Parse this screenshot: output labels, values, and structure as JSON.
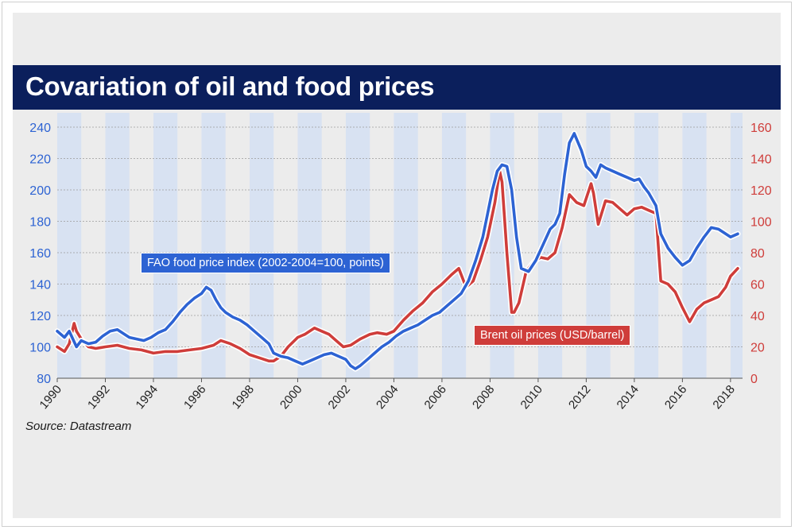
{
  "title": "Covariation of oil and food prices",
  "source": "Source: Datastream",
  "colors": {
    "fao": "#2d63d3",
    "brent": "#cf3d3a",
    "title_bg": "#0b1f5c",
    "band": "#d8e2f2"
  },
  "chart_data": {
    "type": "line",
    "title": "Covariation of oil and food prices",
    "x_ticks": [
      "1990",
      "1992",
      "1994",
      "1996",
      "1998",
      "2000",
      "2002",
      "2004",
      "2006",
      "2008",
      "2010",
      "2012",
      "2014",
      "2016",
      "2018"
    ],
    "xlim": [
      1990,
      2018.5
    ],
    "y_left": {
      "ticks": [
        80,
        100,
        120,
        140,
        160,
        180,
        200,
        220,
        240
      ],
      "lim": [
        80,
        240
      ]
    },
    "y_right": {
      "ticks": [
        0,
        20,
        40,
        60,
        80,
        100,
        120,
        140,
        160
      ],
      "lim": [
        0,
        160
      ]
    },
    "grid": true,
    "series": [
      {
        "name": "FAO food price index (2002-2004=100, points)",
        "axis": "left",
        "x": [
          1990.0,
          1990.3,
          1990.5,
          1990.8,
          1991.0,
          1991.3,
          1991.6,
          1991.9,
          1992.2,
          1992.5,
          1992.8,
          1993.0,
          1993.3,
          1993.6,
          1993.9,
          1994.2,
          1994.5,
          1994.8,
          1995.1,
          1995.4,
          1995.7,
          1996.0,
          1996.2,
          1996.4,
          1996.6,
          1996.8,
          1997.0,
          1997.3,
          1997.6,
          1997.9,
          1998.2,
          1998.5,
          1998.8,
          1999.0,
          1999.3,
          1999.6,
          1999.9,
          2000.2,
          2000.5,
          2000.8,
          2001.1,
          2001.4,
          2001.7,
          2002.0,
          2002.2,
          2002.4,
          2002.6,
          2002.9,
          2003.2,
          2003.5,
          2003.8,
          2004.1,
          2004.4,
          2004.7,
          2005.0,
          2005.3,
          2005.6,
          2005.9,
          2006.2,
          2006.5,
          2006.8,
          2007.1,
          2007.4,
          2007.7,
          2007.9,
          2008.1,
          2008.3,
          2008.5,
          2008.7,
          2008.9,
          2009.1,
          2009.3,
          2009.6,
          2009.9,
          2010.2,
          2010.5,
          2010.7,
          2010.9,
          2011.1,
          2011.3,
          2011.5,
          2011.8,
          2012.0,
          2012.2,
          2012.4,
          2012.6,
          2012.8,
          2013.1,
          2013.4,
          2013.7,
          2014.0,
          2014.2,
          2014.4,
          2014.6,
          2014.9,
          2015.1,
          2015.4,
          2015.7,
          2016.0,
          2016.3,
          2016.6,
          2016.9,
          2017.2,
          2017.5,
          2017.8,
          2018.0,
          2018.3
        ],
        "y": [
          110,
          106,
          110,
          100,
          104,
          102,
          103,
          107,
          110,
          111,
          108,
          106,
          105,
          104,
          106,
          109,
          111,
          116,
          122,
          127,
          131,
          134,
          138,
          136,
          130,
          125,
          122,
          119,
          117,
          114,
          110,
          106,
          102,
          96,
          94,
          93,
          91,
          89,
          91,
          93,
          95,
          96,
          94,
          92,
          88,
          86,
          88,
          92,
          96,
          100,
          103,
          107,
          110,
          112,
          114,
          117,
          120,
          122,
          126,
          130,
          134,
          142,
          155,
          170,
          185,
          200,
          212,
          216,
          215,
          200,
          170,
          150,
          148,
          155,
          165,
          175,
          178,
          185,
          210,
          230,
          236,
          225,
          215,
          212,
          208,
          216,
          214,
          212,
          210,
          208,
          206,
          207,
          202,
          198,
          190,
          172,
          163,
          157,
          152,
          155,
          163,
          170,
          176,
          175,
          172,
          170,
          172
        ]
      },
      {
        "name": "Brent oil prices (USD/barrel)",
        "axis": "right",
        "x": [
          1990.0,
          1990.3,
          1990.5,
          1990.7,
          1990.8,
          1991.0,
          1991.3,
          1991.6,
          1992.0,
          1992.5,
          1993.0,
          1993.5,
          1994.0,
          1994.5,
          1995.0,
          1995.5,
          1996.0,
          1996.5,
          1996.8,
          1997.2,
          1997.6,
          1998.0,
          1998.4,
          1998.8,
          1999.0,
          1999.3,
          1999.6,
          2000.0,
          2000.3,
          2000.7,
          2001.0,
          2001.3,
          2001.6,
          2001.9,
          2002.2,
          2002.6,
          2003.0,
          2003.3,
          2003.7,
          2004.0,
          2004.4,
          2004.8,
          2005.2,
          2005.6,
          2006.0,
          2006.4,
          2006.7,
          2007.0,
          2007.3,
          2007.6,
          2007.9,
          2008.2,
          2008.4,
          2008.5,
          2008.7,
          2008.9,
          2009.0,
          2009.2,
          2009.5,
          2009.8,
          2010.1,
          2010.4,
          2010.7,
          2011.0,
          2011.3,
          2011.6,
          2011.9,
          2012.2,
          2012.3,
          2012.5,
          2012.8,
          2013.1,
          2013.4,
          2013.7,
          2014.0,
          2014.3,
          2014.6,
          2014.9,
          2015.1,
          2015.4,
          2015.7,
          2016.0,
          2016.3,
          2016.6,
          2016.9,
          2017.2,
          2017.5,
          2017.8,
          2018.0,
          2018.3
        ],
        "y": [
          20,
          17,
          22,
          35,
          30,
          25,
          20,
          19,
          20,
          21,
          19,
          18,
          16,
          17,
          17,
          18,
          19,
          21,
          24,
          22,
          19,
          15,
          13,
          11,
          11,
          14,
          20,
          26,
          28,
          32,
          30,
          28,
          24,
          20,
          21,
          25,
          28,
          29,
          28,
          30,
          37,
          43,
          48,
          55,
          60,
          66,
          70,
          58,
          62,
          75,
          90,
          112,
          132,
          125,
          80,
          42,
          42,
          48,
          68,
          74,
          77,
          76,
          80,
          96,
          117,
          112,
          110,
          124,
          118,
          98,
          113,
          112,
          108,
          104,
          108,
          109,
          107,
          105,
          62,
          60,
          55,
          45,
          36,
          44,
          48,
          50,
          52,
          58,
          65,
          70
        ]
      }
    ]
  }
}
